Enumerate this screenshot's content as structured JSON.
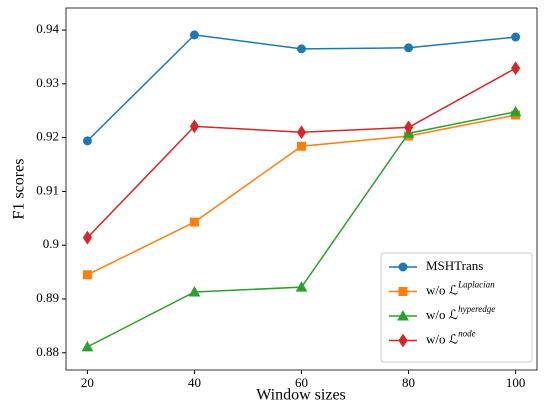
{
  "chart_data": {
    "type": "line",
    "x_label": "Window sizes",
    "y_label": "F1 scores",
    "x": [
      20,
      40,
      60,
      80,
      100
    ],
    "series": [
      {
        "name": "MSHTrans",
        "color": "#1f77b4",
        "marker": "circle",
        "values": [
          0.9194,
          0.9391,
          0.9365,
          0.9367,
          0.9387
        ]
      },
      {
        "name": "w/o ℒ",
        "name_superscript": "Laplacian",
        "color": "#ff7f0e",
        "marker": "square",
        "values": [
          0.8945,
          0.9043,
          0.9184,
          0.9203,
          0.9242
        ]
      },
      {
        "name": "w/o ℒ",
        "name_superscript": "hyperedge",
        "color": "#2ca02c",
        "marker": "triangle",
        "values": [
          0.8811,
          0.8913,
          0.8922,
          0.9208,
          0.9248
        ]
      },
      {
        "name": "w/o ℒ",
        "name_superscript": "node",
        "color": "#d62728",
        "marker": "diamond",
        "values": [
          0.9014,
          0.9221,
          0.921,
          0.9219,
          0.9329
        ]
      }
    ],
    "xlim": [
      16,
      104
    ],
    "xticks": [
      20,
      40,
      60,
      80,
      100
    ],
    "ylim": [
      0.8768,
      0.9441
    ],
    "yticks": [
      0.88,
      0.89,
      0.9,
      0.91,
      0.92,
      0.93,
      0.94
    ],
    "legend": "lower right"
  }
}
